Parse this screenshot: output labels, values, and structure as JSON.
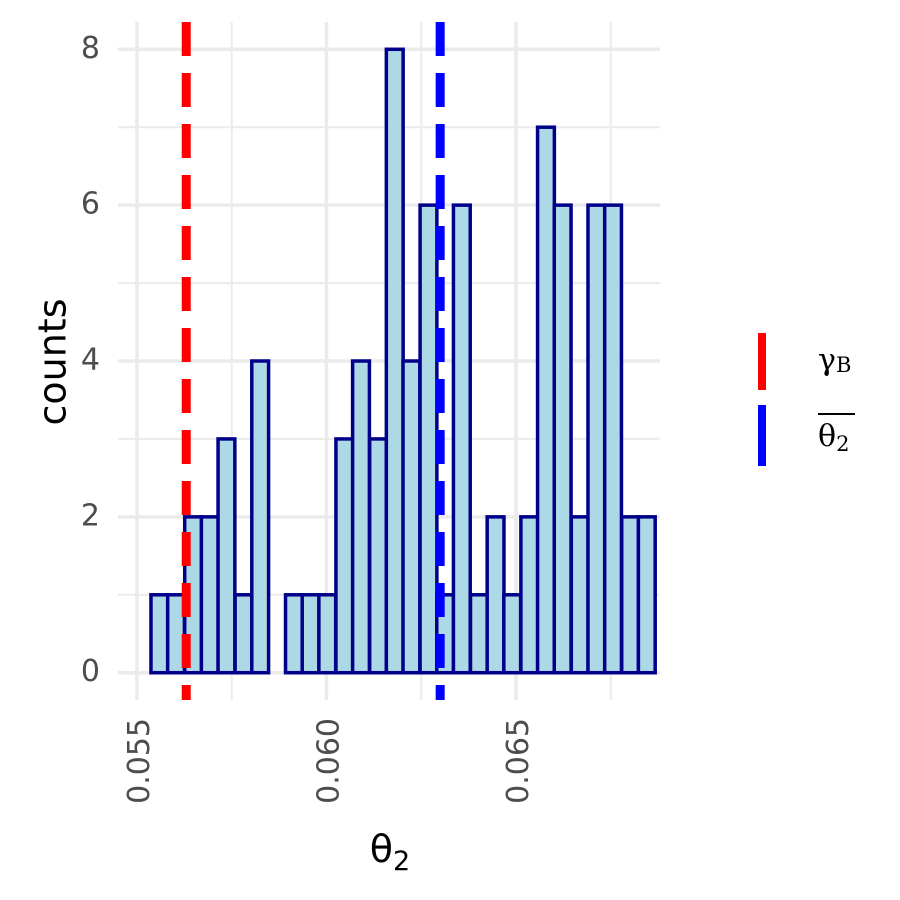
{
  "chart_data": {
    "type": "bar",
    "subtype": "histogram",
    "xlabel": "θ",
    "xlabel_subscript": "2",
    "ylabel": "counts",
    "xlim": [
      0.0545,
      0.0688
    ],
    "ylim": [
      -0.35,
      8.35
    ],
    "x_ticks": [
      0.055,
      0.06,
      0.065
    ],
    "x_tick_labels": [
      "0.055",
      "0.060",
      "0.065"
    ],
    "y_ticks": [
      0,
      2,
      4,
      6,
      8
    ],
    "y_tick_labels": [
      "0",
      "2",
      "4",
      "6",
      "8"
    ],
    "grid": true,
    "bin_width": 0.000443,
    "bins": [
      {
        "x_start": 0.05537,
        "count": 1
      },
      {
        "x_start": 0.05581,
        "count": 1
      },
      {
        "x_start": 0.05626,
        "count": 2
      },
      {
        "x_start": 0.0567,
        "count": 2
      },
      {
        "x_start": 0.05714,
        "count": 3
      },
      {
        "x_start": 0.05759,
        "count": 1
      },
      {
        "x_start": 0.05803,
        "count": 4
      },
      {
        "x_start": 0.05847,
        "count": 0
      },
      {
        "x_start": 0.05892,
        "count": 1
      },
      {
        "x_start": 0.05936,
        "count": 1
      },
      {
        "x_start": 0.0598,
        "count": 1
      },
      {
        "x_start": 0.06025,
        "count": 3
      },
      {
        "x_start": 0.06069,
        "count": 4
      },
      {
        "x_start": 0.06114,
        "count": 3
      },
      {
        "x_start": 0.06158,
        "count": 8
      },
      {
        "x_start": 0.06202,
        "count": 4
      },
      {
        "x_start": 0.06247,
        "count": 6
      },
      {
        "x_start": 0.06291,
        "count": 1
      },
      {
        "x_start": 0.06335,
        "count": 6
      },
      {
        "x_start": 0.0638,
        "count": 1
      },
      {
        "x_start": 0.06424,
        "count": 2
      },
      {
        "x_start": 0.06468,
        "count": 1
      },
      {
        "x_start": 0.06513,
        "count": 2
      },
      {
        "x_start": 0.06557,
        "count": 7
      },
      {
        "x_start": 0.06601,
        "count": 6
      },
      {
        "x_start": 0.06646,
        "count": 2
      },
      {
        "x_start": 0.0669,
        "count": 6
      },
      {
        "x_start": 0.06734,
        "count": 6
      },
      {
        "x_start": 0.06779,
        "count": 2
      },
      {
        "x_start": 0.06823,
        "count": 2
      }
    ],
    "reference_lines": [
      {
        "name": "γ",
        "subscript": "B",
        "overline": false,
        "x": 0.0563,
        "color": "#ff0000",
        "style": "dashed"
      },
      {
        "name": "θ",
        "subscript": "2",
        "overline": true,
        "x": 0.063,
        "color": "#0000ff",
        "style": "dashed"
      }
    ],
    "legend_position": "right",
    "colors": {
      "bar_fill": "#add8e6",
      "bar_stroke": "#00008b",
      "grid": "#ebebeb",
      "tick_text": "#4d4d4d"
    }
  }
}
